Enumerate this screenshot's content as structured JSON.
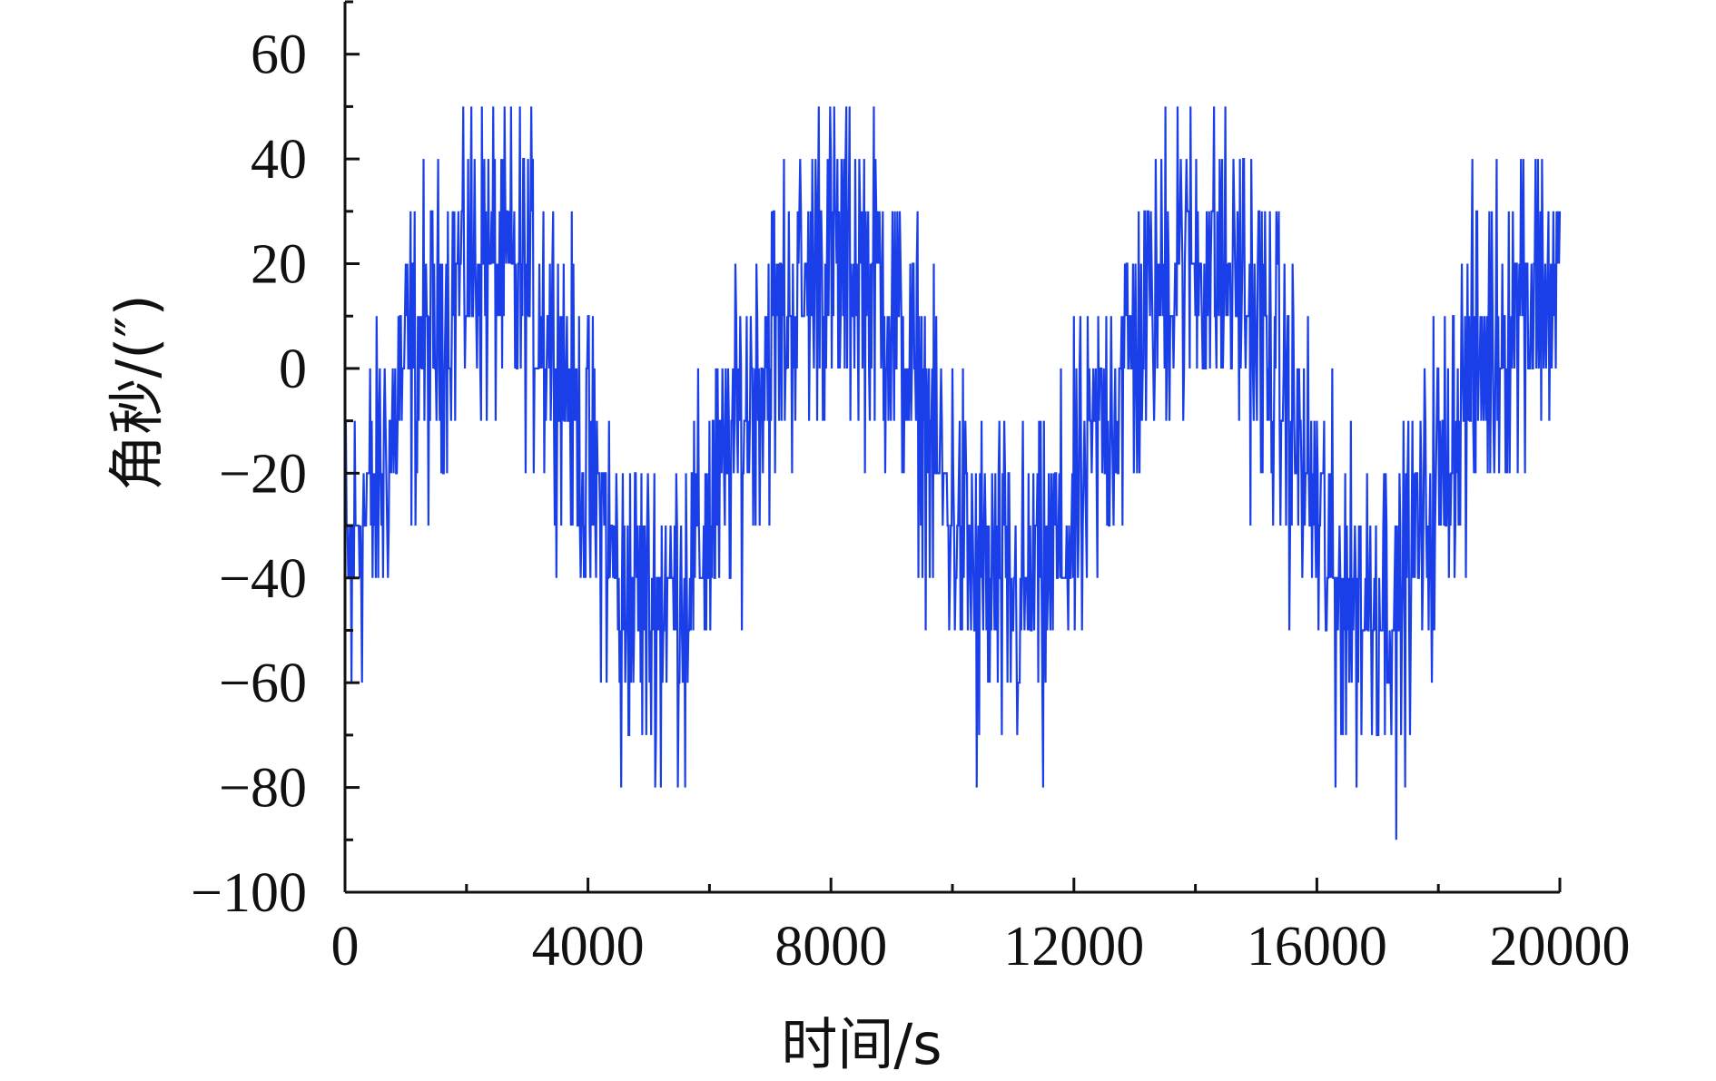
{
  "chart_data": {
    "type": "line",
    "xlabel": "时间/s",
    "ylabel": "角秒/(″)",
    "xlim": [
      0,
      20000
    ],
    "ylim": [
      -100,
      70
    ],
    "x_ticks": [
      0,
      4000,
      8000,
      12000,
      16000,
      20000
    ],
    "x_tick_labels": [
      "0",
      "4000",
      "8000",
      "12000",
      "16000",
      "20000"
    ],
    "y_ticks": [
      -100,
      -80,
      -60,
      -40,
      -20,
      0,
      20,
      40,
      60
    ],
    "y_tick_labels": [
      "−100",
      "−80",
      "−60",
      "−40",
      "−20",
      "0",
      "20",
      "40",
      "60"
    ],
    "grid": false,
    "legend": "none",
    "series": [
      {
        "color": "#1a3fe8",
        "quantization_step": 10,
        "approx_period_s": 5800,
        "x_start": 0,
        "x_end": 20000,
        "envelope_points": [
          {
            "x": 0,
            "y": -40
          },
          {
            "x": 200,
            "y": -30
          },
          {
            "x": 600,
            "y": -20
          },
          {
            "x": 1000,
            "y": 0
          },
          {
            "x": 1400,
            "y": 5
          },
          {
            "x": 2000,
            "y": 20
          },
          {
            "x": 2500,
            "y": 20
          },
          {
            "x": 3000,
            "y": 15
          },
          {
            "x": 3500,
            "y": 5
          },
          {
            "x": 4000,
            "y": -20
          },
          {
            "x": 4500,
            "y": -40
          },
          {
            "x": 5000,
            "y": -45
          },
          {
            "x": 5500,
            "y": -40
          },
          {
            "x": 6000,
            "y": -30
          },
          {
            "x": 6500,
            "y": -10
          },
          {
            "x": 7000,
            "y": 5
          },
          {
            "x": 7800,
            "y": 20
          },
          {
            "x": 8300,
            "y": 20
          },
          {
            "x": 8800,
            "y": 15
          },
          {
            "x": 9300,
            "y": 0
          },
          {
            "x": 9800,
            "y": -20
          },
          {
            "x": 10400,
            "y": -40
          },
          {
            "x": 11000,
            "y": -45
          },
          {
            "x": 11500,
            "y": -40
          },
          {
            "x": 12000,
            "y": -30
          },
          {
            "x": 12500,
            "y": -10
          },
          {
            "x": 13000,
            "y": 5
          },
          {
            "x": 13600,
            "y": 20
          },
          {
            "x": 14200,
            "y": 20
          },
          {
            "x": 14800,
            "y": 15
          },
          {
            "x": 15300,
            "y": 0
          },
          {
            "x": 15800,
            "y": -20
          },
          {
            "x": 16300,
            "y": -40
          },
          {
            "x": 16800,
            "y": -45
          },
          {
            "x": 17400,
            "y": -40
          },
          {
            "x": 17900,
            "y": -25
          },
          {
            "x": 18400,
            "y": -5
          },
          {
            "x": 18900,
            "y": 5
          },
          {
            "x": 19400,
            "y": 15
          },
          {
            "x": 20000,
            "y": 15
          }
        ],
        "excursions": [
          {
            "x": 100,
            "y": -60
          },
          {
            "x": 1950,
            "y": 50
          },
          {
            "x": 2600,
            "y": 40
          },
          {
            "x": 4550,
            "y": -80
          },
          {
            "x": 5200,
            "y": -80
          },
          {
            "x": 5600,
            "y": -80
          },
          {
            "x": 7800,
            "y": 50
          },
          {
            "x": 8000,
            "y": 40
          },
          {
            "x": 8400,
            "y": 40
          },
          {
            "x": 10400,
            "y": -80
          },
          {
            "x": 11500,
            "y": -80
          },
          {
            "x": 13500,
            "y": 50
          },
          {
            "x": 13700,
            "y": 50
          },
          {
            "x": 14400,
            "y": 40
          },
          {
            "x": 14800,
            "y": 40
          },
          {
            "x": 16300,
            "y": -80
          },
          {
            "x": 17300,
            "y": -90
          },
          {
            "x": 19400,
            "y": 40
          },
          {
            "x": 19600,
            "y": 40
          }
        ]
      }
    ]
  }
}
